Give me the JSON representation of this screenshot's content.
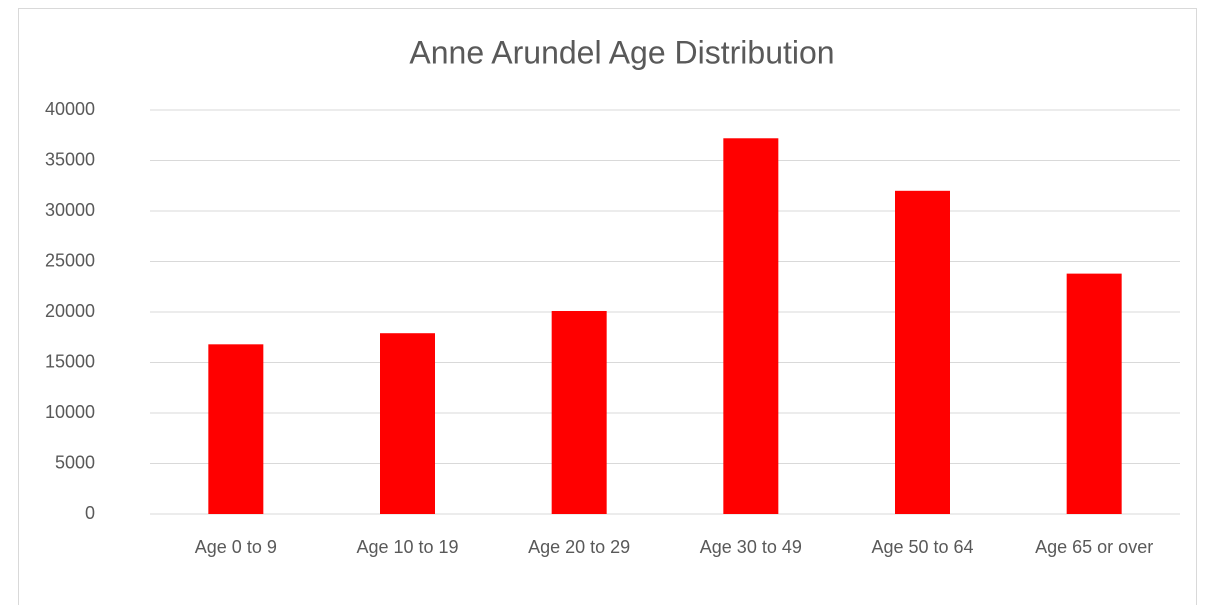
{
  "chart_data": {
    "type": "bar",
    "title": "Anne Arundel Age Distribution",
    "categories": [
      "Age 0 to 9",
      "Age 10 to 19",
      "Age 20 to 29",
      "Age 30 to 49",
      "Age 50 to 64",
      "Age 65 or over"
    ],
    "values": [
      16800,
      17900,
      20100,
      37200,
      32000,
      23800
    ],
    "color": "#ff0000",
    "ylim": [
      0,
      40000
    ],
    "yticks": [
      0,
      5000,
      10000,
      15000,
      20000,
      25000,
      30000,
      35000,
      40000
    ],
    "grid": true
  }
}
